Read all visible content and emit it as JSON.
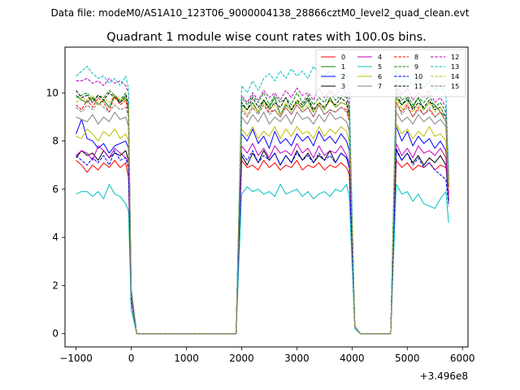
{
  "header": {
    "data_file": "Data file: modeM0/AS1A10_123T06_9000004138_28866cztM0_level2_quad_clean.evt"
  },
  "chart_data": {
    "type": "line",
    "title": "Quadrant 1 module wise count rates with 100.0s bins.",
    "xlabel": "",
    "ylabel": "",
    "x_offset_label": "+3.496e8",
    "xlim": [
      -1200,
      6100
    ],
    "ylim": [
      -0.55,
      11.9
    ],
    "x_ticks": [
      -1000,
      0,
      1000,
      2000,
      3000,
      4000,
      5000,
      6000
    ],
    "y_ticks": [
      0,
      2,
      4,
      6,
      8,
      10
    ],
    "x": [
      -1000,
      -900,
      -800,
      -700,
      -600,
      -500,
      -400,
      -300,
      -200,
      -100,
      -50,
      0,
      100,
      200,
      300,
      400,
      500,
      600,
      700,
      800,
      900,
      1000,
      1100,
      1200,
      1300,
      1400,
      1500,
      1600,
      1700,
      1800,
      1900,
      2000,
      2100,
      2200,
      2300,
      2400,
      2500,
      2600,
      2700,
      2800,
      2900,
      3000,
      3100,
      3200,
      3300,
      3400,
      3500,
      3600,
      3700,
      3800,
      3900,
      3950,
      4050,
      4150,
      4250,
      4350,
      4450,
      4550,
      4650,
      4700,
      4800,
      4900,
      5000,
      5100,
      5200,
      5300,
      5400,
      5500,
      5600,
      5700,
      5750
    ],
    "series": [
      {
        "name": "0",
        "color": "#ff0000",
        "dash": "solid",
        "values": [
          7.2,
          7.0,
          6.7,
          7.0,
          6.8,
          7.1,
          6.9,
          7.2,
          6.9,
          7.1,
          6.5,
          1.4,
          0,
          0,
          0,
          0,
          0,
          0,
          0,
          0,
          0,
          0,
          0,
          0,
          0,
          0,
          0,
          0,
          0,
          0,
          0,
          7.2,
          6.9,
          7.0,
          6.8,
          7.2,
          6.9,
          7.1,
          6.8,
          7.0,
          6.9,
          7.2,
          6.8,
          7.0,
          6.9,
          7.1,
          6.8,
          7.0,
          6.9,
          7.1,
          6.9,
          6.6,
          0.3,
          0,
          0,
          0,
          0,
          0,
          0,
          0,
          7.2,
          6.9,
          7.1,
          6.8,
          7.0,
          6.9,
          7.1,
          6.8,
          7.0,
          6.9,
          6.8
        ]
      },
      {
        "name": "1",
        "color": "#008000",
        "dash": "solid",
        "values": [
          9.9,
          9.7,
          9.6,
          9.8,
          9.5,
          9.7,
          9.4,
          9.9,
          9.6,
          9.8,
          9.3,
          1.7,
          0,
          0,
          0,
          0,
          0,
          0,
          0,
          0,
          0,
          0,
          0,
          0,
          0,
          0,
          0,
          0,
          0,
          0,
          0,
          9.5,
          9.3,
          9.6,
          9.2,
          9.7,
          9.4,
          9.8,
          9.1,
          9.5,
          9.3,
          9.6,
          9.4,
          9.7,
          9.2,
          9.6,
          9.3,
          9.8,
          9.4,
          9.6,
          9.5,
          9.0,
          0.3,
          0,
          0,
          0,
          0,
          0,
          0,
          0,
          9.8,
          9.5,
          9.7,
          9.4,
          9.8,
          9.3,
          9.6,
          9.5,
          9.2,
          9.0,
          6.2
        ]
      },
      {
        "name": "2",
        "color": "#0000ff",
        "dash": "solid",
        "values": [
          8.3,
          8.9,
          8.1,
          8.0,
          7.7,
          7.9,
          7.5,
          7.8,
          7.9,
          8.0,
          7.7,
          1.5,
          0,
          0,
          0,
          0,
          0,
          0,
          0,
          0,
          0,
          0,
          0,
          0,
          0,
          0,
          0,
          0,
          0,
          0,
          0,
          8.3,
          8.0,
          8.5,
          7.9,
          8.2,
          7.7,
          8.4,
          7.9,
          8.1,
          7.8,
          8.3,
          8.0,
          8.2,
          7.8,
          8.4,
          8.0,
          8.2,
          7.9,
          8.3,
          8.0,
          7.6,
          0.3,
          0,
          0,
          0,
          0,
          0,
          0,
          0,
          8.6,
          8.0,
          8.4,
          7.8,
          8.2,
          7.9,
          8.1,
          7.7,
          8.0,
          7.6,
          5.8
        ]
      },
      {
        "name": "3",
        "color": "#000000",
        "dash": "solid",
        "values": [
          7.3,
          7.6,
          7.4,
          7.5,
          7.2,
          7.6,
          7.3,
          7.5,
          7.4,
          7.6,
          7.2,
          1.4,
          0,
          0,
          0,
          0,
          0,
          0,
          0,
          0,
          0,
          0,
          0,
          0,
          0,
          0,
          0,
          0,
          0,
          0,
          0,
          7.4,
          7.0,
          7.5,
          7.1,
          7.6,
          7.2,
          7.5,
          7.0,
          7.4,
          7.1,
          7.6,
          7.2,
          7.5,
          7.1,
          7.4,
          7.2,
          7.6,
          7.1,
          7.5,
          7.3,
          6.9,
          0.3,
          0,
          0,
          0,
          0,
          0,
          0,
          0,
          7.6,
          7.2,
          7.5,
          7.1,
          7.4,
          7.0,
          7.3,
          7.1,
          7.4,
          7.0,
          5.5
        ]
      },
      {
        "name": "4",
        "color": "#bf00bf",
        "dash": "solid",
        "values": [
          7.4,
          7.6,
          7.5,
          7.2,
          7.8,
          7.6,
          7.3,
          7.7,
          7.5,
          7.3,
          7.1,
          1.4,
          0,
          0,
          0,
          0,
          0,
          0,
          0,
          0,
          0,
          0,
          0,
          0,
          0,
          0,
          0,
          0,
          0,
          0,
          0,
          7.8,
          7.5,
          7.9,
          7.4,
          7.7,
          7.3,
          7.8,
          7.5,
          7.6,
          7.4,
          7.9,
          7.5,
          7.7,
          7.3,
          7.8,
          7.4,
          7.6,
          7.5,
          7.8,
          7.4,
          7.1,
          0.3,
          0,
          0,
          0,
          0,
          0,
          0,
          0,
          7.9,
          7.4,
          7.7,
          7.3,
          7.8,
          7.5,
          7.6,
          7.4,
          7.7,
          7.3,
          5.6
        ]
      },
      {
        "name": "5",
        "color": "#00bfbf",
        "dash": "solid",
        "values": [
          5.8,
          5.9,
          5.9,
          5.7,
          5.9,
          5.6,
          6.2,
          5.8,
          5.7,
          5.4,
          5.1,
          1.0,
          0,
          0,
          0,
          0,
          0,
          0,
          0,
          0,
          0,
          0,
          0,
          0,
          0,
          0,
          0,
          0,
          0,
          0,
          0,
          5.8,
          6.1,
          5.9,
          6.0,
          5.8,
          5.9,
          5.7,
          6.2,
          5.8,
          5.9,
          6.0,
          5.7,
          5.9,
          5.6,
          5.8,
          5.9,
          5.7,
          6.0,
          5.9,
          6.2,
          5.7,
          0.2,
          0,
          0,
          0,
          0,
          0,
          0,
          0,
          6.2,
          5.8,
          5.9,
          5.5,
          5.8,
          5.4,
          5.3,
          5.2,
          5.6,
          5.9,
          4.6
        ]
      },
      {
        "name": "6",
        "color": "#bfbf00",
        "dash": "solid",
        "values": [
          8.2,
          8.1,
          8.5,
          8.3,
          8.0,
          8.4,
          8.2,
          8.5,
          8.1,
          8.3,
          8.0,
          1.5,
          0,
          0,
          0,
          0,
          0,
          0,
          0,
          0,
          0,
          0,
          0,
          0,
          0,
          0,
          0,
          0,
          0,
          0,
          0,
          8.5,
          8.2,
          8.6,
          8.1,
          8.4,
          8.2,
          8.6,
          8.1,
          8.5,
          8.2,
          8.6,
          8.3,
          8.4,
          8.1,
          8.6,
          8.2,
          8.5,
          8.3,
          8.6,
          8.4,
          8.0,
          0.3,
          0,
          0,
          0,
          0,
          0,
          0,
          0,
          8.7,
          8.3,
          8.5,
          8.1,
          8.4,
          8.2,
          8.6,
          8.2,
          8.3,
          8.0,
          6.0
        ]
      },
      {
        "name": "7",
        "color": "#808080",
        "dash": "solid",
        "values": [
          9.0,
          8.9,
          8.8,
          9.1,
          8.7,
          9.0,
          8.8,
          9.2,
          8.9,
          9.0,
          8.6,
          1.6,
          0,
          0,
          0,
          0,
          0,
          0,
          0,
          0,
          0,
          0,
          0,
          0,
          0,
          0,
          0,
          0,
          0,
          0,
          0,
          9.0,
          8.7,
          9.1,
          8.8,
          9.2,
          8.7,
          9.0,
          8.8,
          9.1,
          8.7,
          9.2,
          8.9,
          9.0,
          8.7,
          9.1,
          8.8,
          9.2,
          8.9,
          9.0,
          8.8,
          8.4,
          0.3,
          0,
          0,
          0,
          0,
          0,
          0,
          0,
          9.2,
          8.8,
          9.0,
          8.7,
          9.1,
          8.8,
          9.0,
          8.7,
          8.9,
          8.6,
          6.2
        ]
      },
      {
        "name": "8",
        "color": "#ff0000",
        "dash": "dashed",
        "values": [
          9.5,
          9.3,
          9.7,
          9.4,
          9.8,
          9.6,
          9.2,
          9.9,
          9.5,
          9.7,
          9.1,
          1.7,
          0,
          0,
          0,
          0,
          0,
          0,
          0,
          0,
          0,
          0,
          0,
          0,
          0,
          0,
          0,
          0,
          0,
          0,
          0,
          9.3,
          9.0,
          9.4,
          9.1,
          9.5,
          9.2,
          9.3,
          9.0,
          9.4,
          9.1,
          9.5,
          9.2,
          9.4,
          9.0,
          9.5,
          9.1,
          9.3,
          9.2,
          9.4,
          9.3,
          8.9,
          0.3,
          0,
          0,
          0,
          0,
          0,
          0,
          0,
          9.6,
          9.2,
          9.5,
          9.0,
          9.4,
          9.1,
          9.3,
          9.0,
          9.2,
          8.8,
          6.1
        ]
      },
      {
        "name": "9",
        "color": "#008000",
        "dash": "dashed",
        "values": [
          9.8,
          9.9,
          10.0,
          9.7,
          9.9,
          9.8,
          10.1,
          9.9,
          9.7,
          10.0,
          9.5,
          1.8,
          0,
          0,
          0,
          0,
          0,
          0,
          0,
          0,
          0,
          0,
          0,
          0,
          0,
          0,
          0,
          0,
          0,
          0,
          0,
          9.8,
          9.5,
          9.9,
          9.6,
          10.0,
          9.5,
          9.9,
          9.6,
          9.8,
          9.5,
          10.0,
          9.6,
          9.9,
          9.5,
          9.8,
          9.6,
          10.0,
          9.7,
          9.9,
          9.8,
          9.3,
          0.3,
          0,
          0,
          0,
          0,
          0,
          0,
          0,
          10.2,
          9.7,
          9.9,
          9.5,
          9.8,
          9.6,
          9.9,
          9.4,
          9.6,
          9.2,
          6.4
        ]
      },
      {
        "name": "10",
        "color": "#0000ff",
        "dash": "dashed",
        "values": [
          7.4,
          7.2,
          7.0,
          7.3,
          7.1,
          7.4,
          7.0,
          7.6,
          7.2,
          7.3,
          6.9,
          1.4,
          0,
          0,
          0,
          0,
          0,
          0,
          0,
          0,
          0,
          0,
          0,
          0,
          0,
          0,
          0,
          0,
          0,
          0,
          0,
          7.5,
          7.2,
          7.6,
          7.1,
          7.4,
          7.2,
          7.5,
          7.0,
          7.4,
          7.1,
          7.5,
          7.2,
          7.4,
          7.1,
          7.5,
          7.2,
          7.4,
          7.1,
          7.5,
          7.3,
          6.9,
          0.3,
          0,
          0,
          0,
          0,
          0,
          0,
          0,
          7.7,
          7.2,
          7.5,
          7.0,
          7.3,
          6.9,
          7.1,
          6.8,
          6.6,
          6.4,
          5.3
        ]
      },
      {
        "name": "11",
        "color": "#000000",
        "dash": "dashed",
        "values": [
          10.1,
          9.8,
          9.9,
          9.6,
          9.9,
          9.7,
          10.0,
          9.8,
          9.6,
          9.9,
          9.4,
          1.8,
          0,
          0,
          0,
          0,
          0,
          0,
          0,
          0,
          0,
          0,
          0,
          0,
          0,
          0,
          0,
          0,
          0,
          0,
          0,
          9.6,
          9.3,
          9.8,
          9.4,
          9.7,
          9.3,
          9.6,
          9.4,
          9.8,
          9.3,
          9.7,
          9.5,
          9.8,
          9.3,
          9.6,
          9.4,
          9.7,
          9.5,
          9.8,
          9.6,
          9.1,
          0.3,
          0,
          0,
          0,
          0,
          0,
          0,
          0,
          10.0,
          9.5,
          9.8,
          9.3,
          9.6,
          9.4,
          9.7,
          9.3,
          9.4,
          9.0,
          6.3
        ]
      },
      {
        "name": "12",
        "color": "#bf00bf",
        "dash": "dashed",
        "values": [
          10.5,
          10.5,
          10.6,
          10.4,
          10.5,
          10.3,
          10.6,
          10.4,
          10.5,
          10.3,
          10.0,
          1.9,
          0,
          0,
          0,
          0,
          0,
          0,
          0,
          0,
          0,
          0,
          0,
          0,
          0,
          0,
          0,
          0,
          0,
          0,
          0,
          9.9,
          9.6,
          10.0,
          9.7,
          10.1,
          9.8,
          10.0,
          9.7,
          10.1,
          9.8,
          10.2,
          9.9,
          10.0,
          9.7,
          10.2,
          9.8,
          10.1,
          9.9,
          10.2,
          10.0,
          9.5,
          0.3,
          0,
          0,
          0,
          0,
          0,
          0,
          0,
          10.4,
          9.9,
          10.2,
          9.7,
          10.0,
          9.8,
          10.1,
          9.6,
          9.8,
          9.4,
          6.5
        ]
      },
      {
        "name": "13",
        "color": "#00bfbf",
        "dash": "dashed",
        "values": [
          10.7,
          10.9,
          11.1,
          10.8,
          10.6,
          10.7,
          10.4,
          10.6,
          10.3,
          10.7,
          10.2,
          1.9,
          0,
          0,
          0,
          0,
          0,
          0,
          0,
          0,
          0,
          0,
          0,
          0,
          0,
          0,
          0,
          0,
          0,
          0,
          0,
          10.3,
          10.0,
          10.5,
          10.1,
          10.6,
          10.8,
          10.5,
          10.9,
          10.6,
          11.0,
          10.7,
          10.9,
          10.6,
          11.1,
          10.8,
          10.7,
          10.9,
          10.6,
          10.8,
          10.7,
          10.2,
          0.3,
          0,
          0,
          0,
          0,
          0,
          0,
          0,
          10.9,
          10.4,
          10.7,
          10.3,
          10.6,
          10.2,
          10.5,
          10.1,
          10.3,
          9.9,
          6.8
        ]
      },
      {
        "name": "14",
        "color": "#bfbf00",
        "dash": "dashed",
        "values": [
          9.6,
          9.8,
          9.7,
          9.9,
          9.5,
          9.8,
          9.6,
          9.9,
          9.7,
          9.8,
          9.4,
          1.8,
          0,
          0,
          0,
          0,
          0,
          0,
          0,
          0,
          0,
          0,
          0,
          0,
          0,
          0,
          0,
          0,
          0,
          0,
          0,
          9.4,
          9.1,
          9.5,
          9.2,
          9.6,
          9.3,
          9.5,
          9.1,
          9.6,
          9.2,
          9.7,
          9.3,
          9.5,
          9.2,
          9.6,
          9.3,
          9.7,
          9.4,
          9.6,
          9.5,
          9.0,
          0.3,
          0,
          0,
          0,
          0,
          0,
          0,
          0,
          9.8,
          9.3,
          9.6,
          9.2,
          9.5,
          9.3,
          9.6,
          9.2,
          9.4,
          9.0,
          6.2
        ]
      },
      {
        "name": "15",
        "color": "#808080",
        "dash": "dashed",
        "values": [
          9.4,
          9.2,
          9.5,
          9.3,
          9.6,
          9.4,
          9.2,
          9.5,
          9.3,
          9.4,
          9.0,
          1.7,
          0,
          0,
          0,
          0,
          0,
          0,
          0,
          0,
          0,
          0,
          0,
          0,
          0,
          0,
          0,
          0,
          0,
          0,
          0,
          9.3,
          9.0,
          9.4,
          9.1,
          9.5,
          9.1,
          9.3,
          9.0,
          9.4,
          9.1,
          9.5,
          9.2,
          9.4,
          9.0,
          9.5,
          9.1,
          9.3,
          9.2,
          9.4,
          9.2,
          8.8,
          0.3,
          0,
          0,
          0,
          0,
          0,
          0,
          0,
          9.6,
          9.1,
          9.4,
          9.0,
          9.3,
          9.1,
          9.4,
          9.0,
          9.2,
          8.8,
          6.1
        ]
      }
    ],
    "legend": "top-right"
  }
}
